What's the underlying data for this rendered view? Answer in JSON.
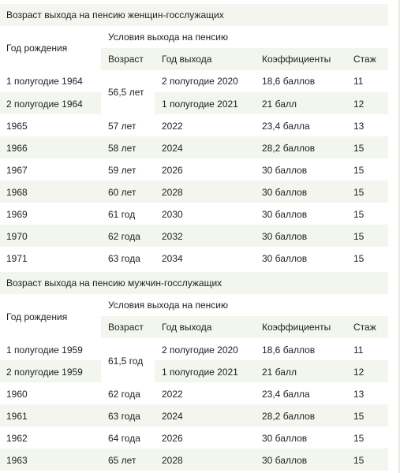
{
  "tables": [
    {
      "title": "Возраст выхода на пенсию женщин-госслужащих",
      "headers": {
        "birth_year": "Год рождения",
        "conditions": "Условия выхода на пенсию",
        "age": "Возраст",
        "exit_year": "Год выхода",
        "coef": "Коэффициенты",
        "exp": "Стаж"
      },
      "rows": [
        {
          "birth": "1 полугодие 1964",
          "age": "56,5 лет",
          "year": "2 полугодие 2020",
          "coef": "18,6 баллов",
          "exp": "11"
        },
        {
          "birth": "2 полугодие 1964",
          "age": "",
          "year": "1 полугодие 2021",
          "coef": "21 балл",
          "exp": "12"
        },
        {
          "birth": "1965",
          "age": "57 лет",
          "year": "2022",
          "coef": "23,4 балла",
          "exp": "13"
        },
        {
          "birth": "1966",
          "age": "58 лет",
          "year": "2024",
          "coef": "28,2 баллов",
          "exp": "15"
        },
        {
          "birth": "1967",
          "age": "59 лет",
          "year": "2026",
          "coef": "30 баллов",
          "exp": "15"
        },
        {
          "birth": "1968",
          "age": "60 лет",
          "year": "2028",
          "coef": "30 баллов",
          "exp": "15"
        },
        {
          "birth": "1969",
          "age": "61 год",
          "year": "2030",
          "coef": "30 баллов",
          "exp": "15"
        },
        {
          "birth": "1970",
          "age": "62 года",
          "year": "2032",
          "coef": "30 баллов",
          "exp": "15"
        },
        {
          "birth": "1971",
          "age": "63 года",
          "year": "2034",
          "coef": "30 баллов",
          "exp": "15"
        }
      ]
    },
    {
      "title": "Возраст выхода на пенсию мужчин-госслужащих",
      "headers": {
        "birth_year": "Год рождения",
        "conditions": "Условия выхода на пенсию",
        "age": "Возраст",
        "exit_year": "Год выхода",
        "coef": "Коэффициенты",
        "exp": "Стаж"
      },
      "rows": [
        {
          "birth": "1 полугодие 1959",
          "age": "61,5 год",
          "year": "2 полугодие 2020",
          "coef": "18,6 баллов",
          "exp": "11"
        },
        {
          "birth": "2 полугодие 1959",
          "age": "",
          "year": "1 полугодие 2021",
          "coef": "21 балл",
          "exp": "12"
        },
        {
          "birth": "1960",
          "age": "62 года",
          "year": "2022",
          "coef": "23,4 балла",
          "exp": "13"
        },
        {
          "birth": "1961",
          "age": "63 года",
          "year": "2024",
          "coef": "28,2 баллов",
          "exp": "15"
        },
        {
          "birth": "1962",
          "age": "64 года",
          "year": "2026",
          "coef": "30 баллов",
          "exp": "15"
        },
        {
          "birth": "1963",
          "age": "65 лет",
          "year": "2028",
          "coef": "30 баллов",
          "exp": "15"
        }
      ]
    }
  ]
}
